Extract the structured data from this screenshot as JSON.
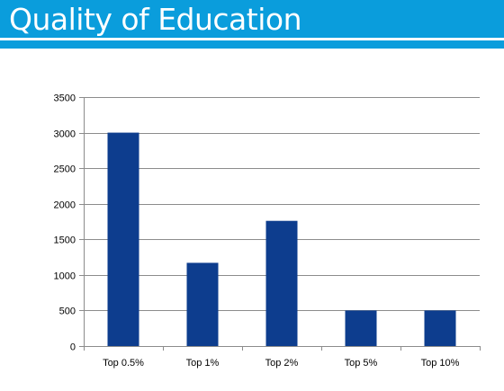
{
  "header": {
    "title": "Quality of Education"
  },
  "colors": {
    "header_bg": "#0a9ddc",
    "bar": "#0d3d8e",
    "grid": "#8c8c8c"
  },
  "chart_data": {
    "type": "bar",
    "categories": [
      "Top 0.5%",
      "Top 1%",
      "Top 2%",
      "Top 5%",
      "Top 10%"
    ],
    "values": [
      3000,
      1170,
      1760,
      500,
      500
    ],
    "ylim": [
      0,
      3500
    ],
    "yticks": [
      0,
      500,
      1000,
      1500,
      2000,
      2500,
      3000,
      3500
    ],
    "grid": true,
    "legend": "none"
  }
}
